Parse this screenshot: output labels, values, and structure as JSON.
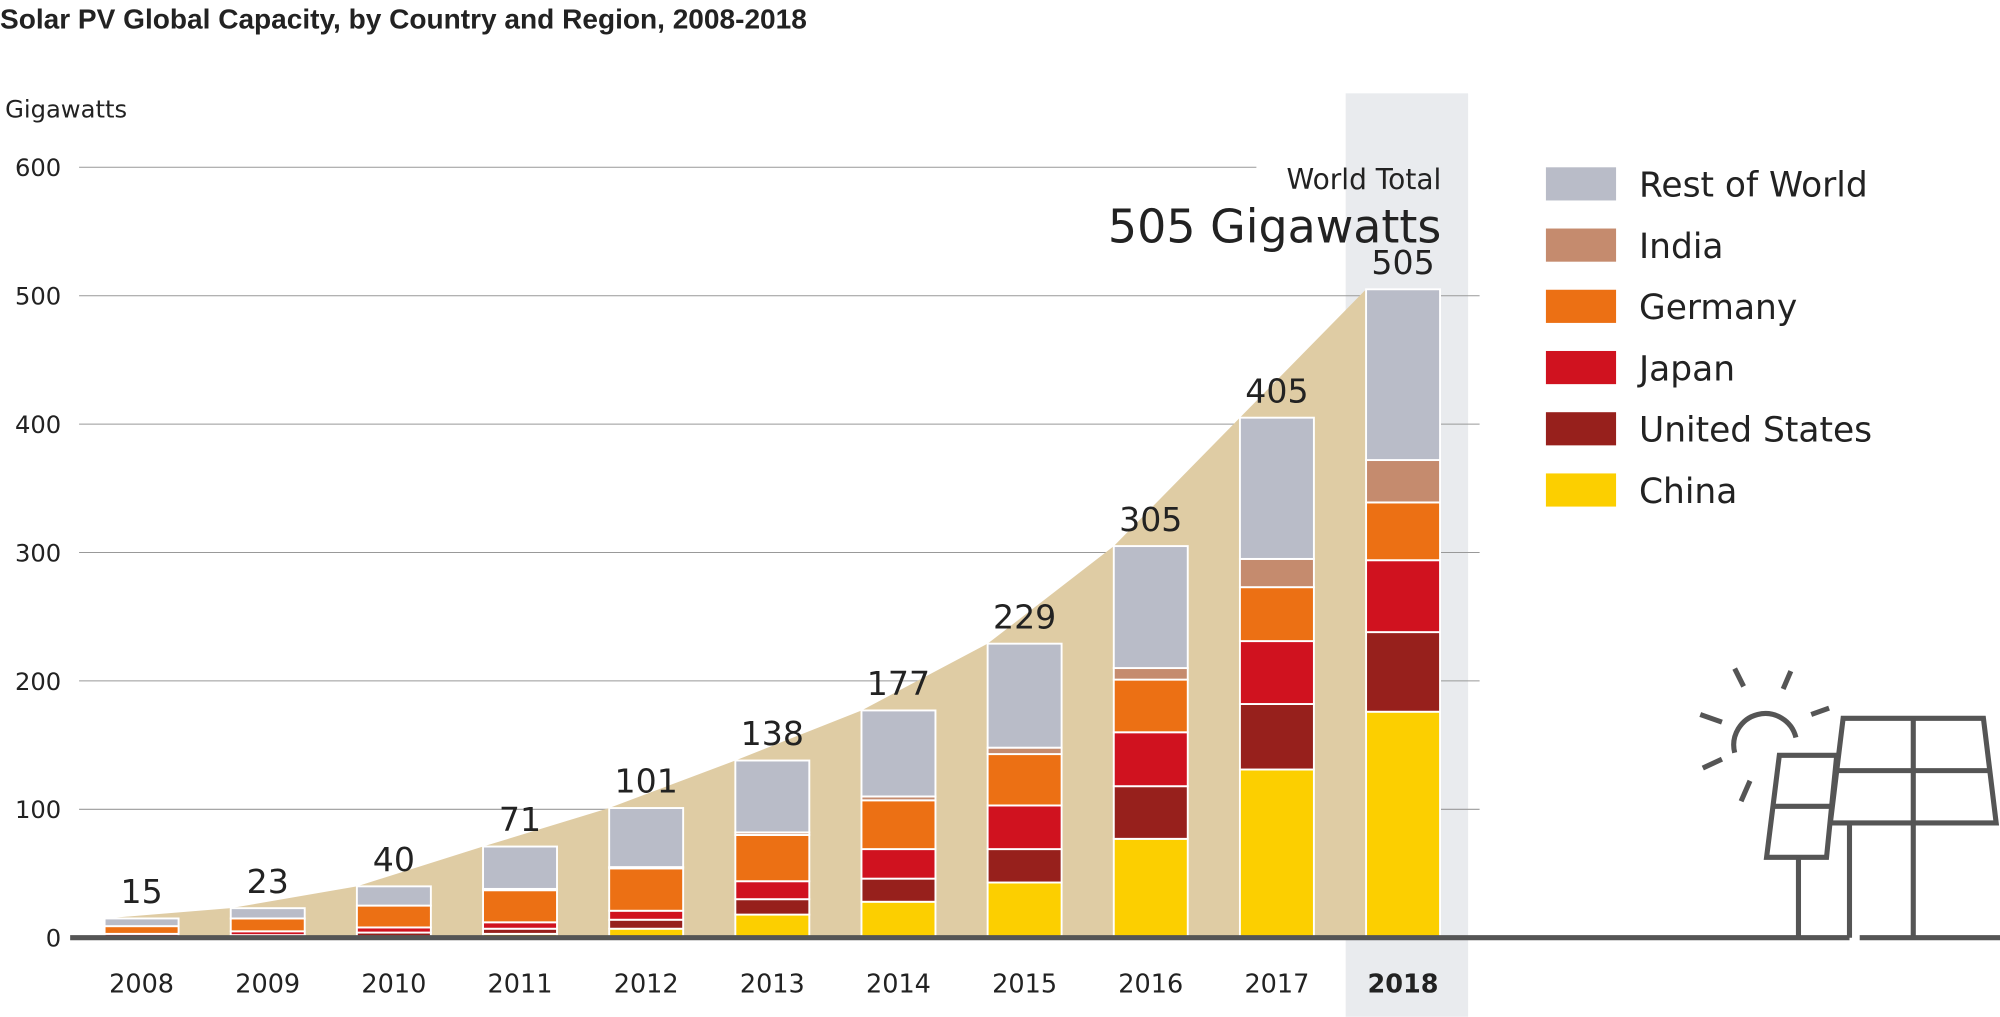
{
  "chart_data": {
    "type": "stacked_bar",
    "title": "Solar PV Global Capacity, by Country and Region, 2008-2018",
    "y_label": "Gigawatts",
    "annotation_title": "World Total",
    "annotation_value": "505 Gigawatts",
    "categories": [
      "2008",
      "2009",
      "2010",
      "2011",
      "2012",
      "2013",
      "2014",
      "2015",
      "2016",
      "2017",
      "2018"
    ],
    "ylim": [
      0,
      600
    ],
    "yticks": [
      0,
      100,
      200,
      300,
      400,
      500,
      600
    ],
    "grid": true,
    "series": [
      {
        "name": "China",
        "color": "#fccf00",
        "values": [
          0,
          0,
          1,
          3,
          7,
          18,
          28,
          43,
          77,
          131,
          176
        ]
      },
      {
        "name": "United States",
        "color": "#97201c",
        "values": [
          1,
          2,
          3,
          4,
          7,
          12,
          18,
          26,
          41,
          51,
          62
        ]
      },
      {
        "name": "Japan",
        "color": "#d0121f",
        "values": [
          2,
          3,
          4,
          5,
          7,
          14,
          23,
          34,
          42,
          49,
          56
        ]
      },
      {
        "name": "Germany",
        "color": "#ec7014",
        "values": [
          6,
          10,
          17,
          25,
          33,
          36,
          38,
          40,
          41,
          42,
          45
        ]
      },
      {
        "name": "India",
        "color": "#c58b6e",
        "values": [
          0,
          0,
          0,
          1,
          1,
          2,
          3,
          5,
          9,
          22,
          33
        ]
      },
      {
        "name": "Rest of World",
        "color": "#b9bcc8",
        "values": [
          6,
          8,
          15,
          33,
          46,
          56,
          67,
          81,
          95,
          110,
          133
        ]
      }
    ],
    "totals": [
      15,
      23,
      40,
      71,
      101,
      138,
      177,
      229,
      305,
      405,
      505
    ]
  }
}
